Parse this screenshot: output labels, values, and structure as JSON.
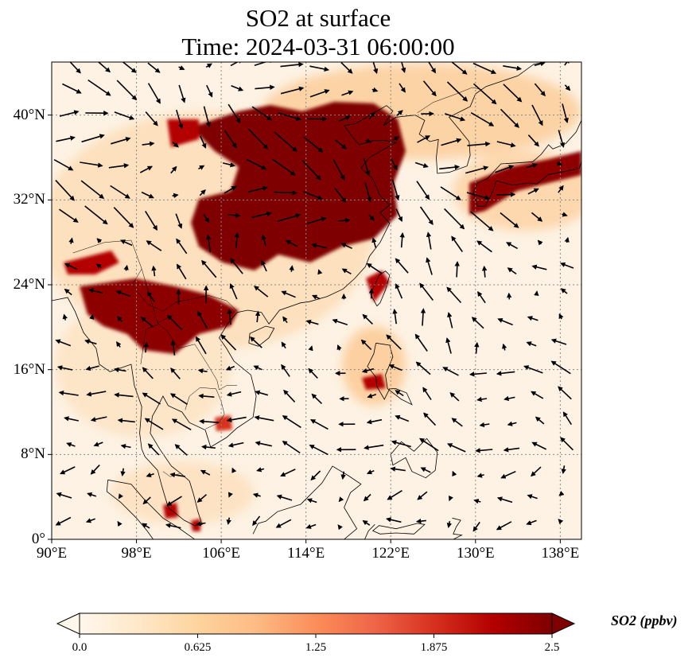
{
  "title_line1": "SO2 at surface",
  "title_line2": "Time: 2024-03-31 06:00:00",
  "map": {
    "lon_range": [
      90,
      140
    ],
    "lat_range": [
      0,
      45
    ],
    "lon_ticks": [
      {
        "value": 90,
        "label": "90°E"
      },
      {
        "value": 98,
        "label": "98°E"
      },
      {
        "value": 106,
        "label": "106°E"
      },
      {
        "value": 114,
        "label": "114°E"
      },
      {
        "value": 122,
        "label": "122°E"
      },
      {
        "value": 130,
        "label": "130°E"
      },
      {
        "value": 138,
        "label": "138°E"
      }
    ],
    "lat_ticks": [
      {
        "value": 0,
        "label": "0°"
      },
      {
        "value": 8,
        "label": "8°N"
      },
      {
        "value": 16,
        "label": "16°N"
      },
      {
        "value": 24,
        "label": "24°N"
      },
      {
        "value": 32,
        "label": "32°N"
      },
      {
        "value": 40,
        "label": "40°N"
      }
    ],
    "gridlines": true,
    "colormap": "OrRd",
    "colors": {
      "low": "#fff7ec",
      "mid": "#fc8d59",
      "high": "#7f0000",
      "grid": "#888888",
      "coast": "#000000"
    }
  },
  "colorbar": {
    "title": "SO2 (ppbv)",
    "range": [
      0.0,
      2.5
    ],
    "ticks": [
      {
        "value": 0.0,
        "label": "0.0"
      },
      {
        "value": 0.625,
        "label": "0.625"
      },
      {
        "value": 1.25,
        "label": "1.25"
      },
      {
        "value": 1.875,
        "label": "1.875"
      },
      {
        "value": 2.5,
        "label": "2.5"
      }
    ],
    "extend": "both"
  }
}
